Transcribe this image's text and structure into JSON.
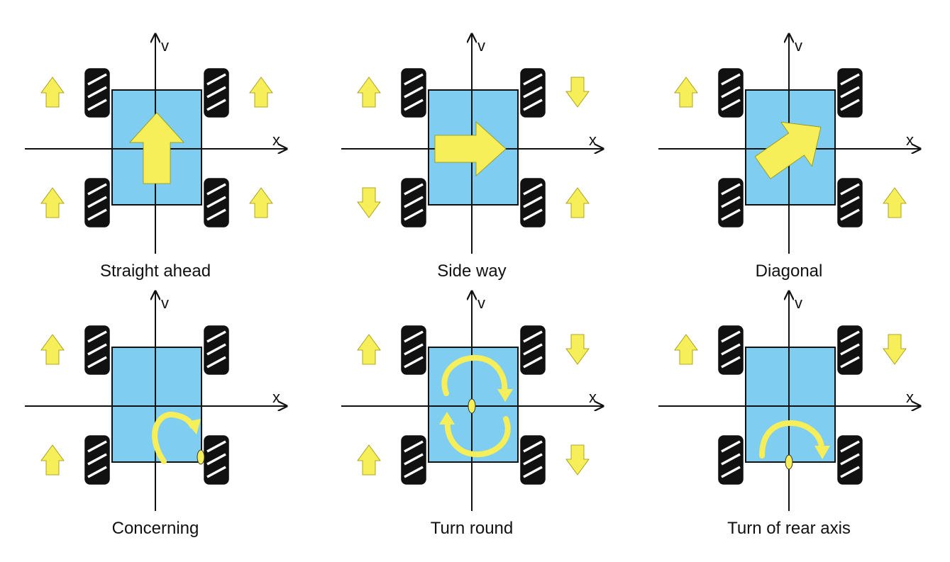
{
  "colors": {
    "body": "#7fcdf0",
    "arrow": "#f7ef5a",
    "wheel": "#111111",
    "axis": "#111111"
  },
  "axes": {
    "x_label": "x",
    "y_label": "v"
  },
  "modes": [
    {
      "caption": "Straight ahead",
      "wheels": {
        "front_left": "up",
        "front_right": "up",
        "rear_left": "up",
        "rear_right": "up"
      },
      "body_motion": "big-arrow-up"
    },
    {
      "caption": "Side way",
      "wheels": {
        "front_left": "up",
        "front_right": "down",
        "rear_left": "down",
        "rear_right": "up"
      },
      "body_motion": "big-arrow-right"
    },
    {
      "caption": "Diagonal",
      "wheels": {
        "front_left": "up",
        "front_right": "none",
        "rear_left": "none",
        "rear_right": "up"
      },
      "body_motion": "big-arrow-diagonal"
    },
    {
      "caption": "Concerning",
      "wheels": {
        "front_left": "up",
        "front_right": "none",
        "rear_left": "up",
        "rear_right": "none"
      },
      "body_motion": "rotate-about-rear-right-wheel"
    },
    {
      "caption": "Turn round",
      "wheels": {
        "front_left": "up",
        "front_right": "down",
        "rear_left": "up",
        "rear_right": "down"
      },
      "body_motion": "rotate-about-center"
    },
    {
      "caption": "Turn of rear axis",
      "wheels": {
        "front_left": "up",
        "front_right": "down",
        "rear_left": "none",
        "rear_right": "none"
      },
      "body_motion": "rotate-about-rear-axle"
    }
  ]
}
